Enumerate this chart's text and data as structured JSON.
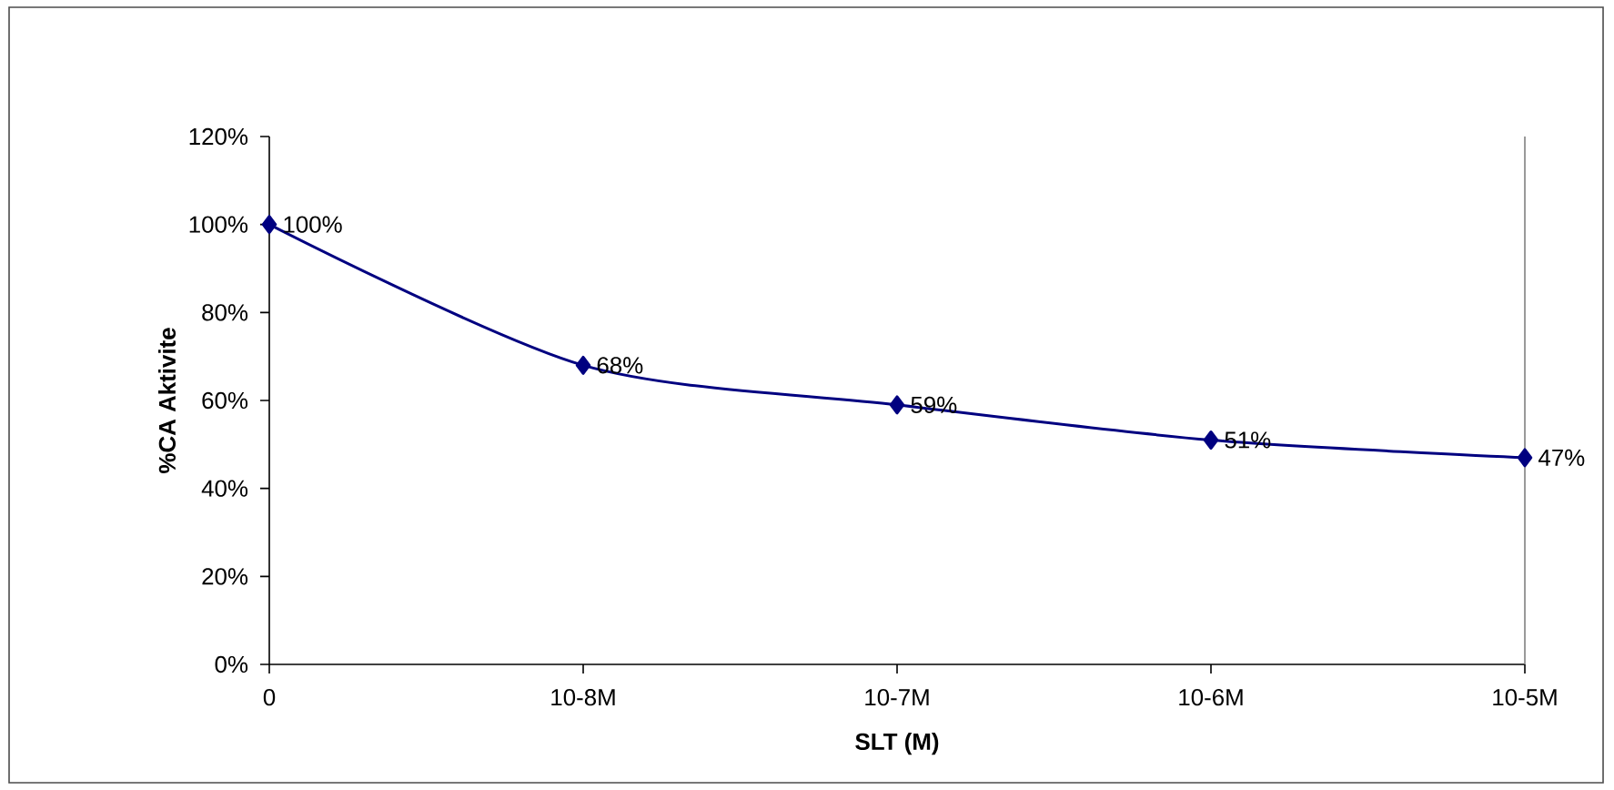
{
  "chart_data": {
    "type": "line",
    "xlabel": "SLT  (M)",
    "ylabel": "%CA Aktivite",
    "categories": [
      "0",
      "10-8M",
      "10-7M",
      "10-6M",
      "10-5M"
    ],
    "values": [
      100,
      68,
      59,
      51,
      47
    ],
    "value_labels": [
      "100%",
      "68%",
      "59%",
      "51%",
      "47%"
    ],
    "color": "#000080",
    "marker": "diamond",
    "ylim": [
      0,
      120
    ],
    "yticks": [
      {
        "value": 0,
        "label": "0%"
      },
      {
        "value": 20,
        "label": "20%"
      },
      {
        "value": 40,
        "label": "40%"
      },
      {
        "value": 60,
        "label": "60%"
      },
      {
        "value": 80,
        "label": "80%"
      },
      {
        "value": 100,
        "label": "100%"
      },
      {
        "value": 120,
        "label": "120%"
      }
    ]
  }
}
